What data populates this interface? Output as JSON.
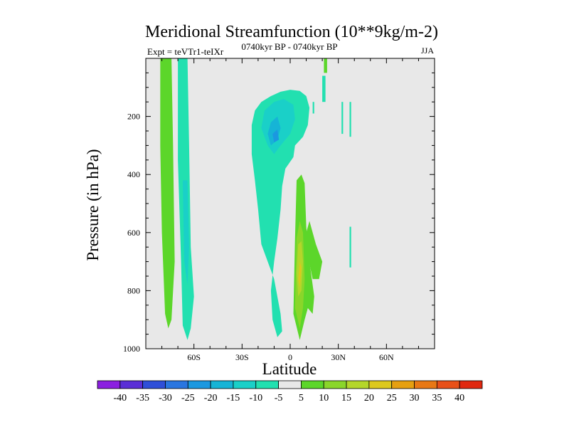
{
  "chart_data": {
    "type": "heatmap",
    "title": "Meridional Streamfunction (10**9kg/m-2)",
    "subtitle": "0740kyr BP - 0740kyr BP",
    "left_label": "Expt = teVTr1-teIXr",
    "right_label": "JJA",
    "xlabel": "Latitude",
    "ylabel": "Pressure (in hPa)",
    "xlim": [
      -90,
      90
    ],
    "ylim": [
      1000,
      0
    ],
    "x_ticks": [
      {
        "value": -60,
        "label": "60S"
      },
      {
        "value": -30,
        "label": "30S"
      },
      {
        "value": 0,
        "label": "0"
      },
      {
        "value": 30,
        "label": "30N"
      },
      {
        "value": 60,
        "label": "60N"
      }
    ],
    "y_ticks": [
      {
        "value": 200,
        "label": "200"
      },
      {
        "value": 400,
        "label": "400"
      },
      {
        "value": 600,
        "label": "600"
      },
      {
        "value": 800,
        "label": "800"
      },
      {
        "value": 1000,
        "label": "1000"
      }
    ],
    "levels": [
      -40,
      -35,
      -30,
      -25,
      -20,
      -15,
      -10,
      -5,
      5,
      10,
      15,
      20,
      25,
      30,
      35,
      40
    ],
    "colorbar_labels": [
      "-40",
      "-35",
      "-30",
      "-25",
      "-20",
      "-15",
      "-10",
      "-5",
      "5",
      "10",
      "15",
      "20",
      "25",
      "30",
      "35",
      "40"
    ],
    "colors": [
      "#8b1fe0",
      "#5a2fd6",
      "#2f4fd8",
      "#2a76e0",
      "#1b98e0",
      "#16b4d6",
      "#1ad0c8",
      "#22e0b0",
      "#e8e8e8",
      "#5cd62a",
      "#8ad62a",
      "#b4d62a",
      "#dcc81e",
      "#e6a010",
      "#e87814",
      "#e85018",
      "#e02810"
    ],
    "background": "#e8e8e8",
    "regions": [
      {
        "name": "sh-column-green",
        "value": 7,
        "polygon": [
          [
            -81,
            0
          ],
          [
            -74,
            0
          ],
          [
            -73,
            300
          ],
          [
            -72,
            700
          ],
          [
            -74,
            900
          ],
          [
            -76,
            930
          ],
          [
            -78,
            880
          ],
          [
            -80,
            600
          ],
          [
            -81,
            300
          ]
        ]
      },
      {
        "name": "sh-column-cyan",
        "value": -7,
        "polygon": [
          [
            -70,
            0
          ],
          [
            -64,
            0
          ],
          [
            -63,
            300
          ],
          [
            -62,
            650
          ],
          [
            -60,
            820
          ],
          [
            -62,
            930
          ],
          [
            -64,
            970
          ],
          [
            -67,
            920
          ],
          [
            -68,
            700
          ],
          [
            -70,
            350
          ]
        ]
      },
      {
        "name": "sh-column-core",
        "value": -12,
        "polygon": [
          [
            -67,
            420
          ],
          [
            -64,
            420
          ],
          [
            -63,
            650
          ],
          [
            -64,
            780
          ],
          [
            -66,
            700
          ]
        ]
      },
      {
        "name": "tropical-cell-outer",
        "value": -7,
        "polygon": [
          [
            -24,
            230
          ],
          [
            -22,
            180
          ],
          [
            -18,
            150
          ],
          [
            -12,
            130
          ],
          [
            -6,
            115
          ],
          [
            0,
            108
          ],
          [
            6,
            112
          ],
          [
            10,
            130
          ],
          [
            12,
            170
          ],
          [
            11,
            230
          ],
          [
            8,
            270
          ],
          [
            3,
            300
          ],
          [
            2,
            340
          ],
          [
            -3,
            380
          ],
          [
            -5,
            440
          ],
          [
            -6,
            520
          ],
          [
            -8,
            620
          ],
          [
            -10,
            700
          ],
          [
            -12,
            800
          ],
          [
            -11,
            900
          ],
          [
            -8,
            960
          ],
          [
            -5,
            940
          ],
          [
            -6,
            880
          ],
          [
            -10,
            760
          ],
          [
            -14,
            700
          ],
          [
            -18,
            640
          ],
          [
            -20,
            520
          ],
          [
            -22,
            420
          ],
          [
            -24,
            330
          ]
        ]
      },
      {
        "name": "tropical-cell-mid",
        "value": -12,
        "polygon": [
          [
            -18,
            240
          ],
          [
            -16,
            180
          ],
          [
            -10,
            150
          ],
          [
            -4,
            140
          ],
          [
            2,
            160
          ],
          [
            3,
            210
          ],
          [
            0,
            260
          ],
          [
            -6,
            300
          ],
          [
            -10,
            330
          ],
          [
            -14,
            300
          ]
        ]
      },
      {
        "name": "tropical-cell-inner",
        "value": -17,
        "polygon": [
          [
            -14,
            260
          ],
          [
            -12,
            220
          ],
          [
            -8,
            200
          ],
          [
            -6,
            240
          ],
          [
            -8,
            280
          ],
          [
            -12,
            300
          ]
        ]
      },
      {
        "name": "tropical-cell-core",
        "value": -22,
        "polygon": [
          [
            -11,
            260
          ],
          [
            -8,
            245
          ],
          [
            -7,
            280
          ],
          [
            -10,
            290
          ]
        ]
      },
      {
        "name": "equatorial-green-outer",
        "value": 7,
        "polygon": [
          [
            2,
            880
          ],
          [
            3,
            620
          ],
          [
            4,
            420
          ],
          [
            7,
            400
          ],
          [
            9,
            430
          ],
          [
            10,
            580
          ],
          [
            12,
            700
          ],
          [
            15,
            820
          ],
          [
            14,
            880
          ],
          [
            11,
            860
          ],
          [
            9,
            900
          ],
          [
            6,
            970
          ]
        ]
      },
      {
        "name": "equatorial-green-inner",
        "value": 12,
        "polygon": [
          [
            3,
            860
          ],
          [
            4,
            620
          ],
          [
            6,
            560
          ],
          [
            8,
            600
          ],
          [
            9,
            760
          ],
          [
            8,
            860
          ],
          [
            6,
            930
          ]
        ]
      },
      {
        "name": "equatorial-yellow",
        "value": 17,
        "polygon": [
          [
            4,
            740
          ],
          [
            5,
            640
          ],
          [
            7,
            630
          ],
          [
            8,
            700
          ],
          [
            7,
            800
          ],
          [
            5,
            820
          ]
        ]
      },
      {
        "name": "equatorial-core",
        "value": 22,
        "polygon": [
          [
            5,
            760
          ],
          [
            6,
            700
          ],
          [
            7,
            720
          ],
          [
            6,
            790
          ]
        ]
      },
      {
        "name": "ne-green-tongue",
        "value": 7,
        "polygon": [
          [
            10,
            600
          ],
          [
            12,
            560
          ],
          [
            16,
            640
          ],
          [
            20,
            700
          ],
          [
            18,
            760
          ],
          [
            14,
            760
          ],
          [
            11,
            680
          ]
        ]
      },
      {
        "name": "nh-streak-1",
        "value": -7,
        "polygon": [
          [
            20,
            60
          ],
          [
            22,
            60
          ],
          [
            22,
            150
          ],
          [
            20,
            150
          ]
        ]
      },
      {
        "name": "nh-streak-2",
        "value": -7,
        "polygon": [
          [
            14,
            150
          ],
          [
            15,
            150
          ],
          [
            15,
            190
          ],
          [
            14,
            190
          ]
        ]
      },
      {
        "name": "nh-streak-3",
        "value": -7,
        "polygon": [
          [
            32,
            150
          ],
          [
            33,
            150
          ],
          [
            33,
            260
          ],
          [
            32,
            260
          ]
        ]
      },
      {
        "name": "nh-streak-4",
        "value": -7,
        "polygon": [
          [
            37,
            150
          ],
          [
            38,
            150
          ],
          [
            38,
            270
          ],
          [
            37,
            270
          ]
        ]
      },
      {
        "name": "nh-streak-5",
        "value": -7,
        "polygon": [
          [
            37,
            580
          ],
          [
            38,
            580
          ],
          [
            38,
            720
          ],
          [
            37,
            720
          ]
        ]
      },
      {
        "name": "nh-green-dot",
        "value": 7,
        "polygon": [
          [
            21,
            0
          ],
          [
            23,
            0
          ],
          [
            23,
            50
          ],
          [
            21,
            50
          ]
        ]
      }
    ]
  }
}
